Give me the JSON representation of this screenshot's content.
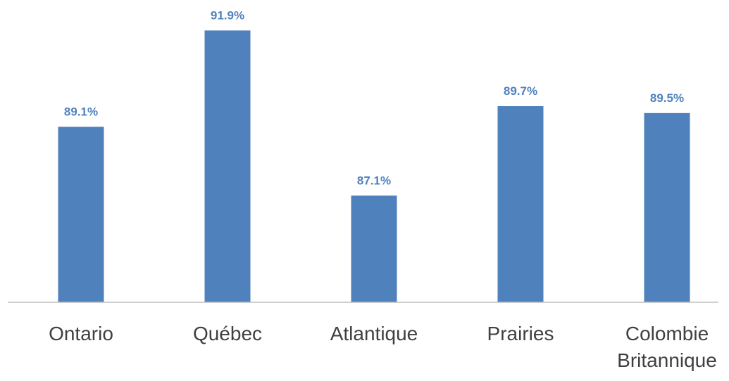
{
  "chart_data": {
    "type": "bar",
    "categories": [
      "Ontario",
      "Québec",
      "Atlantique",
      "Prairies",
      "Colombie Britannique"
    ],
    "values": [
      89.1,
      91.9,
      87.1,
      89.7,
      89.5
    ],
    "value_labels": [
      "89.1%",
      "91.9%",
      "87.1%",
      "89.7%",
      "89.5%"
    ],
    "color": "#4f81bd",
    "ylim": [
      84,
      92.5
    ],
    "grid": false
  }
}
